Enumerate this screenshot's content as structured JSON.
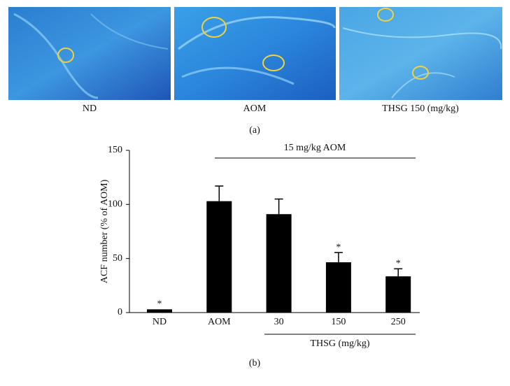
{
  "figure": {
    "panel_labels": [
      "ND",
      "AOM",
      "THSG 150 (mg/kg)"
    ],
    "caption_a": "(a)",
    "caption_b": "(b)"
  },
  "chart_data": {
    "type": "bar",
    "ylabel": "ACF number (% of AOM)",
    "categories": [
      "ND",
      "AOM",
      "30",
      "150",
      "250"
    ],
    "values": [
      3,
      103,
      91,
      46.5,
      33.5
    ],
    "errors": [
      null,
      14,
      14,
      9,
      7
    ],
    "markers": [
      "*",
      null,
      null,
      "*",
      "*"
    ],
    "color": "#000000",
    "ylim": [
      0,
      150
    ],
    "yticks": [
      0,
      50,
      100,
      150
    ],
    "top_bracket": "15 mg/kg AOM",
    "bottom_bracket": "THSG (mg/kg)"
  }
}
